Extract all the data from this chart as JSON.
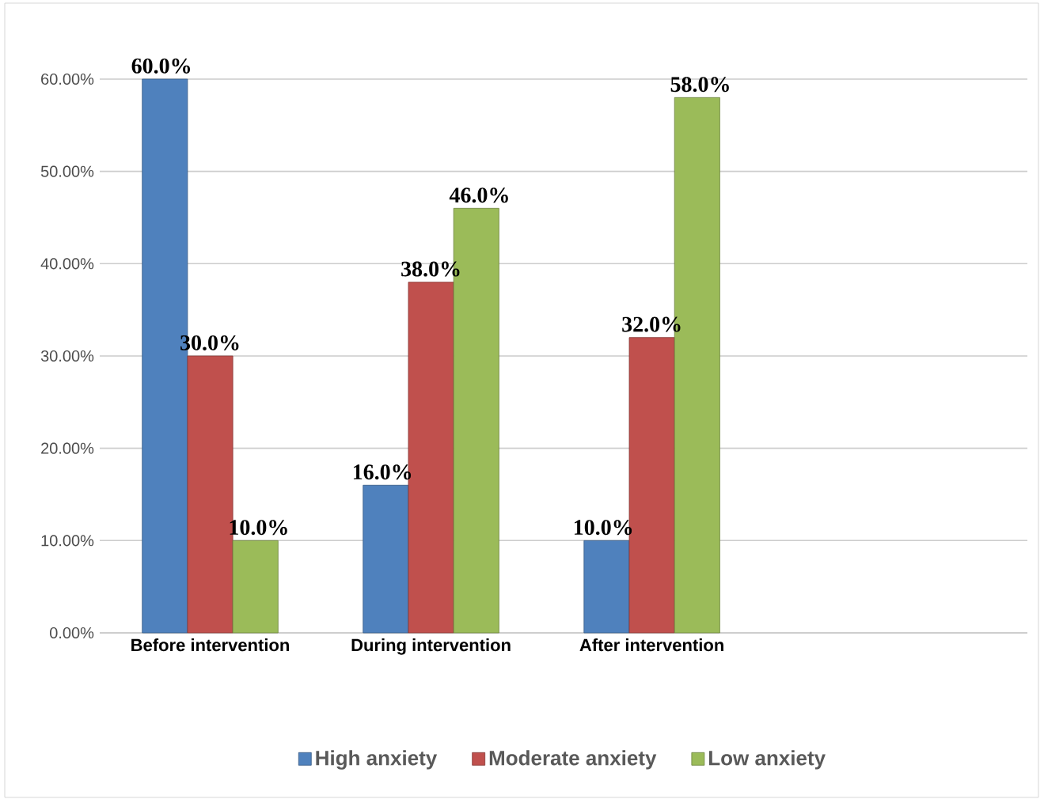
{
  "chart_data": {
    "type": "bar",
    "categories": [
      "Before intervention",
      "During intervention",
      "After  intervention"
    ],
    "series": [
      {
        "name": "High anxiety",
        "color": "#4f81bd",
        "values": [
          60,
          16,
          10
        ],
        "value_labels": [
          "60.0%",
          "16.0%",
          "10.0%"
        ]
      },
      {
        "name": "Moderate anxiety",
        "color": "#c0504d",
        "values": [
          30,
          38,
          32
        ],
        "value_labels": [
          "30.0%",
          "38.0%",
          "32.0%"
        ]
      },
      {
        "name": "Low anxiety",
        "color": "#9bbb59",
        "values": [
          10,
          46,
          58
        ],
        "value_labels": [
          "10.0%",
          "46.0%",
          "58.0%"
        ]
      }
    ],
    "ylim": [
      0,
      60
    ],
    "yticks": [
      {
        "value": 0,
        "label": "0.00%"
      },
      {
        "value": 10,
        "label": "10.00%"
      },
      {
        "value": 20,
        "label": "20.00%"
      },
      {
        "value": 30,
        "label": "30.00%"
      },
      {
        "value": 40,
        "label": "40.00%"
      },
      {
        "value": 50,
        "label": "50.00%"
      },
      {
        "value": 60,
        "label": "60.00%"
      }
    ],
    "grid": "y",
    "legend": "bottom"
  }
}
